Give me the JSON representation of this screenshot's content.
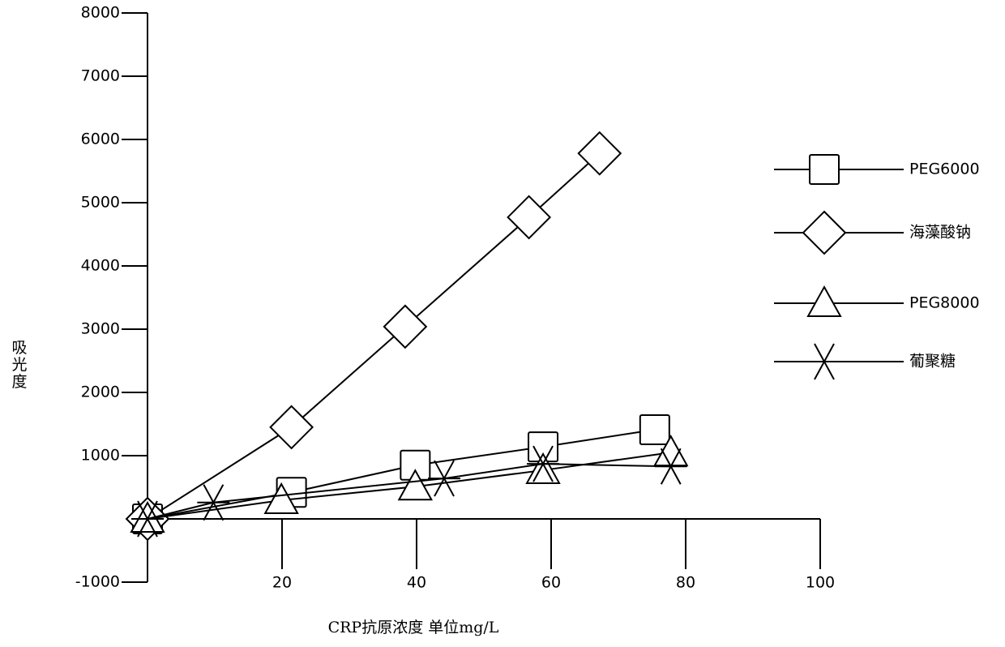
{
  "chart_data": {
    "type": "line",
    "xlabel": "CRP抗原浓度  单位mg/L",
    "ylabel": "吸光度",
    "xlim": [
      0,
      100
    ],
    "xticks": [
      20,
      40,
      60,
      80,
      100
    ],
    "ylim": [
      -1000,
      8000
    ],
    "yticks": [
      -1000,
      1000,
      2000,
      3000,
      4000,
      5000,
      6000,
      7000,
      8000
    ],
    "series": [
      {
        "name": "PEG6000",
        "marker": "square",
        "color": "#000000",
        "x": [
          0,
          21.4,
          39.8,
          58.8,
          75.4
        ],
        "values": [
          0,
          420,
          850,
          1140,
          1410
        ]
      },
      {
        "name": "海藻酸钠",
        "marker": "diamond",
        "color": "#000000",
        "x": [
          0,
          21.4,
          38.3,
          56.7,
          67.2
        ],
        "values": [
          0,
          1450,
          3040,
          4770,
          5780
        ]
      },
      {
        "name": "PEG8000",
        "marker": "triangle",
        "color": "#000000",
        "x": [
          0,
          19.9,
          39.8,
          58.8,
          77.8
        ],
        "values": [
          0,
          295,
          510,
          770,
          1050
        ]
      },
      {
        "name": "葡聚糖",
        "marker": "x",
        "color": "#000000",
        "x": [
          0,
          9.8,
          44.1,
          58.8,
          77.8
        ],
        "values": [
          0,
          260,
          640,
          870,
          830
        ]
      }
    ]
  }
}
